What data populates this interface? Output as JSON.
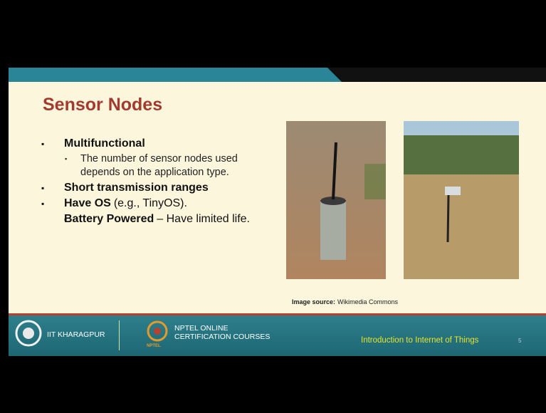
{
  "header": {
    "title": "Sensor Nodes"
  },
  "bullets": [
    {
      "bold": "Multifunctional",
      "sub_bullets": [
        "The number of sensor nodes used depends on the application type."
      ]
    },
    {
      "bold": "Short transmission ranges"
    },
    {
      "bold": "Have OS",
      "text": "(e.g., TinyOS)."
    },
    {
      "bold": "Battery Powered",
      "text": "– Have limited life."
    }
  ],
  "image_credit": {
    "label": "Image source:",
    "text": "Wikimedia Commons"
  },
  "footer": {
    "institute": "IIT KHARAGPUR",
    "program_line1": "NPTEL ONLINE",
    "program_line2": "CERTIFICATION COURSES",
    "logo_text": "NPTEL",
    "course": "Introduction to Internet of Things",
    "page": "5"
  }
}
